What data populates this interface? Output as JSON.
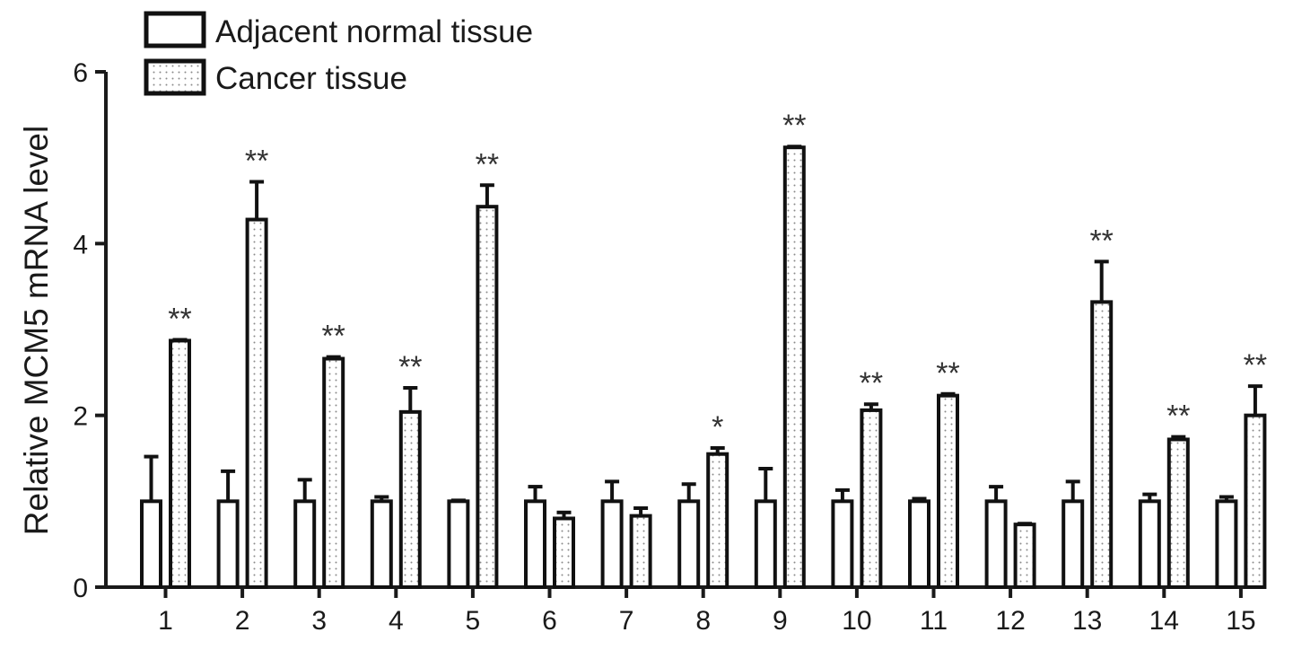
{
  "colors": {
    "axis": "#1a1a1a",
    "bar_stroke": "#111111",
    "normal_fill": "#ffffff",
    "cancer_fill": "#ffffff",
    "cancer_dots": "#8a8a8a"
  },
  "chart_data": {
    "type": "bar",
    "ylabel": "Relative MCM5 mRNA level",
    "xlabel": "",
    "ylim": [
      0,
      6
    ],
    "yticks": [
      "0",
      "2",
      "4",
      "6"
    ],
    "categories": [
      "1",
      "2",
      "3",
      "4",
      "5",
      "6",
      "7",
      "8",
      "9",
      "10",
      "11",
      "12",
      "13",
      "14",
      "15"
    ],
    "legend": {
      "placement": "top-left",
      "entries": [
        "Adjacent normal tissue",
        "Cancer tissue"
      ]
    },
    "series": [
      {
        "name": "Adjacent normal tissue",
        "values": [
          1.0,
          1.0,
          1.0,
          1.0,
          1.0,
          1.0,
          1.0,
          1.0,
          1.0,
          1.0,
          1.0,
          1.0,
          1.0,
          1.0,
          1.0
        ],
        "errors": [
          0.52,
          0.35,
          0.25,
          0.05,
          0.01,
          0.17,
          0.23,
          0.2,
          0.38,
          0.13,
          0.03,
          0.17,
          0.23,
          0.08,
          0.05
        ]
      },
      {
        "name": "Cancer tissue",
        "values": [
          2.87,
          4.28,
          2.66,
          2.04,
          4.43,
          0.8,
          0.83,
          1.55,
          5.12,
          2.06,
          2.23,
          0.73,
          3.32,
          1.72,
          2.0
        ],
        "errors": [
          0.01,
          0.44,
          0.02,
          0.28,
          0.25,
          0.07,
          0.09,
          0.07,
          0.01,
          0.07,
          0.02,
          0.01,
          0.47,
          0.03,
          0.34
        ]
      }
    ],
    "significance": [
      "**",
      "**",
      "**",
      "**",
      "**",
      "",
      "",
      "*",
      "**",
      "**",
      "**",
      "",
      "**",
      "**",
      "**"
    ],
    "grid": false
  }
}
